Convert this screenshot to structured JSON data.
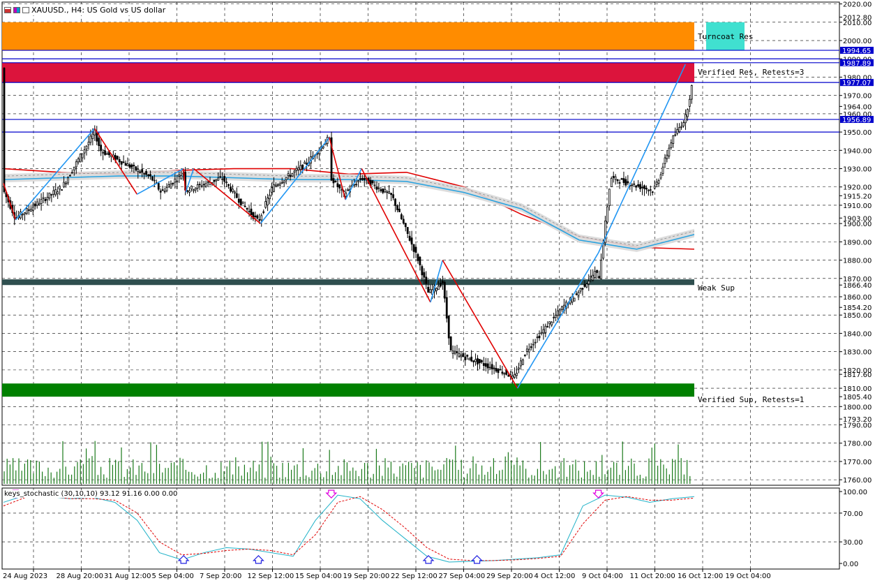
{
  "window": {
    "symbol": "XAUUSD",
    "timeframe": "H4",
    "description": "US Gold vs US dollar",
    "title": "XAUUSD., H4:  US Gold vs US dollar"
  },
  "price_scale": {
    "labels": [
      "2020.00",
      "2012.80",
      "2010.00",
      "2000.00",
      "1990.00",
      "1980.00",
      "1970.00",
      "1964.00",
      "1960.00",
      "1950.00",
      "1940.00",
      "1930.00",
      "1920.00",
      "1915.20",
      "1910.00",
      "1903.00",
      "1900.00",
      "1890.00",
      "1880.00",
      "1870.00",
      "1866.40",
      "1860.00",
      "1854.20",
      "1850.00",
      "1840.00",
      "1830.00",
      "1820.00",
      "1817.60",
      "1810.00",
      "1805.40",
      "1800.00",
      "1793.20",
      "1790.00",
      "1780.00",
      "1770.00",
      "1760.00"
    ],
    "highlighted": [
      {
        "label": "1994.65",
        "color": "#0000cc"
      },
      {
        "label": "1987.89",
        "color": "#0000cc"
      },
      {
        "label": "1977.07",
        "color": "#0000cc"
      },
      {
        "label": "1956.89",
        "color": "#0000cc"
      }
    ]
  },
  "time_axis": {
    "labels": [
      "24 Aug 2023",
      "28 Aug 20:00",
      "31 Aug 12:00",
      "5 Sep 04:00",
      "7 Sep 20:00",
      "12 Sep 12:00",
      "15 Sep 04:00",
      "19 Sep 20:00",
      "22 Sep 12:00",
      "27 Sep 04:00",
      "29 Sep 20:00",
      "4 Oct 12:00",
      "9 Oct 04:00",
      "11 Oct 20:00",
      "16 Oct 12:00",
      "19 Oct 04:00"
    ]
  },
  "zones": [
    {
      "label": "Turncoat Res",
      "low": 1994.65,
      "high": 2010.0,
      "color": "#ff8c00"
    },
    {
      "label": "Verified Res, Retests=3",
      "low": 1977.07,
      "high": 1987.89,
      "color": "#dc143c"
    },
    {
      "label": "Weak Sup",
      "low": 1866.4,
      "high": 1869.5,
      "color": "#2f4f4f"
    },
    {
      "label": "Verified Sup, Retests=1",
      "low": 1805.4,
      "high": 1812.6,
      "color": "#008000"
    }
  ],
  "horizontal_levels": [
    1994.65,
    1990.0,
    1987.89,
    1977.07,
    1956.89,
    1950.0
  ],
  "zigzag": {
    "pivots": [
      {
        "t": "24 Aug 00:00",
        "price": 1922
      },
      {
        "t": "25 Aug",
        "price": 1902
      },
      {
        "t": "31 Aug 12:00",
        "price": 1952
      },
      {
        "t": "4 Sep",
        "price": 1916
      },
      {
        "t": "7 Sep 20:00",
        "price": 1930
      },
      {
        "t": "8 Sep",
        "price": 1917
      },
      {
        "t": "8 Sep 16:00",
        "price": 1930
      },
      {
        "t": "14 Sep 04:00",
        "price": 1900
      },
      {
        "t": "19 Sep 20:00",
        "price": 1947
      },
      {
        "t": "21 Sep 04:00",
        "price": 1913
      },
      {
        "t": "22 Sep 12:00",
        "price": 1930
      },
      {
        "t": "28 Sep 04:00",
        "price": 1857
      },
      {
        "t": "29 Sep 04:00",
        "price": 1880
      },
      {
        "t": "5 Oct 08:00",
        "price": 1810
      },
      {
        "t": "12 Oct 00:00",
        "price": 1884
      },
      {
        "t": "19 Oct 04:00",
        "price": 1987
      }
    ]
  },
  "chart_data": [
    {
      "type": "candlestick",
      "title": "XAUUSD., H4:  US Gold vs US dollar",
      "ylim": [
        1757,
        2021
      ],
      "x_start": "24 Aug 2023",
      "x_end": "20 Oct 2023",
      "ohlc_path_approx": [
        [
          "24 Aug 2023",
          1918
        ],
        [
          "25 Aug",
          1903
        ],
        [
          "28 Aug 20:00",
          1920
        ],
        [
          "31 Aug 12:00",
          1950
        ],
        [
          "1 Sep",
          1940
        ],
        [
          "5 Sep 04:00",
          1925
        ],
        [
          "6 Sep",
          1917
        ],
        [
          "7 Sep 20:00",
          1928
        ],
        [
          "8 Sep",
          1918
        ],
        [
          "11 Sep",
          1925
        ],
        [
          "12 Sep 12:00",
          1912
        ],
        [
          "14 Sep",
          1901
        ],
        [
          "15 Sep 04:00",
          1920
        ],
        [
          "18 Sep",
          1933
        ],
        [
          "19 Sep 20:00",
          1947
        ],
        [
          "20 Sep",
          1925
        ],
        [
          "21 Sep",
          1916
        ],
        [
          "22 Sep 12:00",
          1925
        ],
        [
          "25 Sep",
          1915
        ],
        [
          "27 Sep 04:00",
          1880
        ],
        [
          "28 Sep",
          1862
        ],
        [
          "29 Sep 04:00",
          1868
        ],
        [
          "29 Sep 20:00",
          1830
        ],
        [
          "3 Oct",
          1822
        ],
        [
          "4 Oct 12:00",
          1818
        ],
        [
          "5 Oct",
          1815
        ],
        [
          "6 Oct",
          1830
        ],
        [
          "9 Oct 04:00",
          1855
        ],
        [
          "10 Oct",
          1860
        ],
        [
          "11 Oct 20:00",
          1874
        ],
        [
          "12 Oct",
          1868
        ],
        [
          "13 Oct",
          1925
        ],
        [
          "16 Oct 12:00",
          1918
        ],
        [
          "17 Oct",
          1925
        ],
        [
          "18 Oct",
          1945
        ],
        [
          "19 Oct 04:00",
          1958
        ],
        [
          "20 Oct",
          1985
        ]
      ],
      "moving_averages": [
        {
          "name": "",
          "color": "#e00000",
          "values_approx": [
            1930,
            1928,
            1927,
            1929,
            1930,
            1930,
            1927,
            1928,
            1920,
            1905,
            1893,
            1887,
            1886
          ]
        },
        {
          "name": "",
          "color": "#29a3e0",
          "values_approx": [
            1924,
            1925,
            1926,
            1926,
            1925,
            1924,
            1924,
            1923,
            1917,
            1908,
            1891,
            1886,
            1894
          ]
        }
      ],
      "ylabel": "",
      "xlabel": ""
    },
    {
      "type": "bar",
      "title": "",
      "series": [
        {
          "name": "",
          "values": "tick volume histogram"
        }
      ],
      "color": "#1a7a1a"
    },
    {
      "type": "line",
      "title": "keys_stochastic (30,10,10) 93.12 91.16 0.00 0.00",
      "ylim": [
        0,
        100
      ],
      "y_ticks": [
        "100.00",
        "70.00",
        "30.00",
        "0.00"
      ],
      "series": [
        {
          "name": "",
          "color": "#20b2c8",
          "style": "solid",
          "values_approx": [
            85,
            95,
            93,
            90,
            92,
            85,
            60,
            15,
            5,
            15,
            22,
            20,
            15,
            10,
            60,
            95,
            90,
            60,
            35,
            10,
            2,
            3,
            4,
            6,
            8,
            12,
            80,
            95,
            92,
            85,
            90,
            93
          ]
        },
        {
          "name": "",
          "color": "#e00000",
          "style": "dashed",
          "values_approx": [
            80,
            92,
            94,
            90,
            90,
            88,
            70,
            30,
            12,
            14,
            18,
            20,
            18,
            12,
            40,
            85,
            93,
            75,
            50,
            22,
            6,
            4,
            4,
            5,
            7,
            10,
            55,
            88,
            93,
            88,
            88,
            91
          ]
        }
      ],
      "signals": [
        {
          "t": "25 Aug",
          "type": "sell"
        },
        {
          "t": "7 Sep 20:00",
          "type": "buy"
        },
        {
          "t": "14 Sep",
          "type": "buy"
        },
        {
          "t": "20 Sep",
          "type": "sell"
        },
        {
          "t": "28 Sep",
          "type": "buy"
        },
        {
          "t": "2 Oct",
          "type": "buy"
        },
        {
          "t": "12 Oct",
          "type": "sell"
        }
      ]
    }
  ],
  "colors": {
    "background": "#ffffff",
    "grid": "#000000",
    "bull_candle": "#000000",
    "bear_candle": "#000000",
    "zigzag_up": "#2196f3",
    "zigzag_down": "#e00000",
    "turncoat_label_bg": "#40e0d0"
  }
}
